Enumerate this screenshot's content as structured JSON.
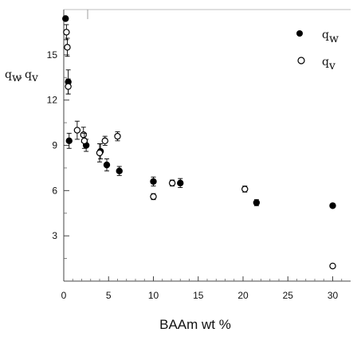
{
  "chart_data": {
    "type": "scatter",
    "xlabel": "BAAm wt %",
    "ylabel": "q_w, q_v",
    "xlim": [
      0,
      32
    ],
    "ylim": [
      0,
      18
    ],
    "xticks": [
      0,
      5,
      10,
      15,
      20,
      25,
      30
    ],
    "yticks": [
      3,
      6,
      9,
      12,
      15
    ],
    "xtick_labels": [
      "0",
      "5",
      "10",
      "15",
      "20",
      "25",
      "30"
    ],
    "ytick_labels": [
      "3",
      "6",
      "9",
      "12",
      "15"
    ],
    "series": [
      {
        "name": "q_w",
        "legend_main": "q",
        "legend_sub": "w",
        "marker": "filled-circle",
        "color": "#000000",
        "points": [
          {
            "x": 0.2,
            "y": 17.4,
            "err": 0
          },
          {
            "x": 0.5,
            "y": 13.2,
            "err": 0.8
          },
          {
            "x": 0.6,
            "y": 9.3,
            "err": 0.5
          },
          {
            "x": 2.5,
            "y": 9.0,
            "err": 0.4
          },
          {
            "x": 4.1,
            "y": 8.6,
            "err": 0.5
          },
          {
            "x": 4.8,
            "y": 7.7,
            "err": 0.4
          },
          {
            "x": 6.2,
            "y": 7.3,
            "err": 0.3
          },
          {
            "x": 10.0,
            "y": 6.6,
            "err": 0.3
          },
          {
            "x": 13.0,
            "y": 6.5,
            "err": 0.3
          },
          {
            "x": 21.5,
            "y": 5.2,
            "err": 0.2
          },
          {
            "x": 30.0,
            "y": 5.0,
            "err": 0
          }
        ]
      },
      {
        "name": "q_v",
        "legend_main": "q",
        "legend_sub": "v",
        "marker": "open-circle",
        "color": "#000000",
        "points": [
          {
            "x": 0.3,
            "y": 16.5,
            "err": 0.5
          },
          {
            "x": 0.4,
            "y": 15.5,
            "err": 0.6
          },
          {
            "x": 0.5,
            "y": 12.9,
            "err": 0.5
          },
          {
            "x": 1.5,
            "y": 10.0,
            "err": 0.6
          },
          {
            "x": 2.2,
            "y": 9.7,
            "err": 0.5
          },
          {
            "x": 2.3,
            "y": 9.3,
            "err": 0.5
          },
          {
            "x": 4.0,
            "y": 8.5,
            "err": 0.6
          },
          {
            "x": 4.6,
            "y": 9.3,
            "err": 0.3
          },
          {
            "x": 6.0,
            "y": 9.6,
            "err": 0.3
          },
          {
            "x": 10.0,
            "y": 5.6,
            "err": 0.2
          },
          {
            "x": 12.1,
            "y": 6.5,
            "err": 0.2
          },
          {
            "x": 20.2,
            "y": 6.1,
            "err": 0.2
          },
          {
            "x": 30.0,
            "y": 1.0,
            "err": 0
          }
        ]
      }
    ]
  }
}
